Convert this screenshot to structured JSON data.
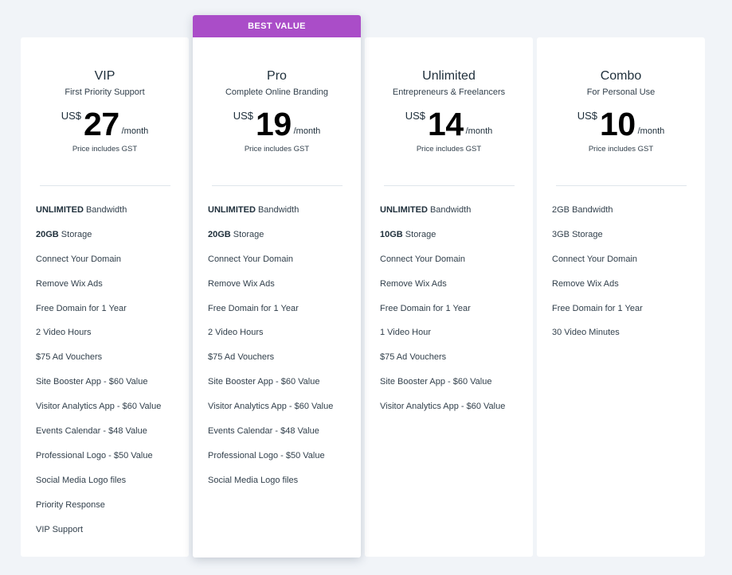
{
  "plans": [
    {
      "name": "VIP",
      "tagline": "First Priority Support",
      "currency": "US$",
      "price": "27",
      "period": "/month",
      "gst_note": "Price includes GST",
      "features": [
        {
          "bold": "UNLIMITED",
          "text": " Bandwidth"
        },
        {
          "bold": "20GB",
          "text": " Storage"
        },
        {
          "bold": "",
          "text": "Connect Your Domain"
        },
        {
          "bold": "",
          "text": "Remove Wix Ads"
        },
        {
          "bold": "",
          "text": "Free Domain for 1 Year"
        },
        {
          "bold": "",
          "text": "2 Video Hours"
        },
        {
          "bold": "",
          "text": "$75 Ad Vouchers"
        },
        {
          "bold": "",
          "text": "Site Booster App - $60 Value"
        },
        {
          "bold": "",
          "text": "Visitor Analytics App - $60 Value"
        },
        {
          "bold": "",
          "text": "Events Calendar - $48 Value"
        },
        {
          "bold": "",
          "text": "Professional Logo - $50 Value"
        },
        {
          "bold": "",
          "text": "Social Media Logo files"
        },
        {
          "bold": "",
          "text": "Priority Response"
        },
        {
          "bold": "",
          "text": "VIP Support"
        }
      ]
    },
    {
      "ribbon": "BEST VALUE",
      "name": "Pro",
      "tagline": "Complete Online Branding",
      "currency": "US$",
      "price": "19",
      "period": "/month",
      "gst_note": "Price includes GST",
      "features": [
        {
          "bold": "UNLIMITED",
          "text": " Bandwidth"
        },
        {
          "bold": "20GB",
          "text": " Storage"
        },
        {
          "bold": "",
          "text": "Connect Your Domain"
        },
        {
          "bold": "",
          "text": "Remove Wix Ads"
        },
        {
          "bold": "",
          "text": "Free Domain for 1 Year"
        },
        {
          "bold": "",
          "text": "2 Video Hours"
        },
        {
          "bold": "",
          "text": "$75 Ad Vouchers"
        },
        {
          "bold": "",
          "text": "Site Booster App - $60 Value"
        },
        {
          "bold": "",
          "text": "Visitor Analytics App - $60 Value"
        },
        {
          "bold": "",
          "text": "Events Calendar - $48 Value"
        },
        {
          "bold": "",
          "text": "Professional Logo - $50 Value"
        },
        {
          "bold": "",
          "text": "Social Media Logo files"
        }
      ]
    },
    {
      "name": "Unlimited",
      "tagline": "Entrepreneurs & Freelancers",
      "currency": "US$",
      "price": "14",
      "period": "/month",
      "gst_note": "Price includes GST",
      "features": [
        {
          "bold": "UNLIMITED",
          "text": " Bandwidth"
        },
        {
          "bold": "10GB",
          "text": " Storage"
        },
        {
          "bold": "",
          "text": "Connect Your Domain"
        },
        {
          "bold": "",
          "text": "Remove Wix Ads"
        },
        {
          "bold": "",
          "text": "Free Domain for 1 Year"
        },
        {
          "bold": "",
          "text": "1 Video Hour"
        },
        {
          "bold": "",
          "text": "$75 Ad Vouchers"
        },
        {
          "bold": "",
          "text": "Site Booster App - $60 Value"
        },
        {
          "bold": "",
          "text": "Visitor Analytics App - $60 Value"
        }
      ]
    },
    {
      "name": "Combo",
      "tagline": "For Personal Use",
      "currency": "US$",
      "price": "10",
      "period": "/month",
      "gst_note": "Price includes GST",
      "features": [
        {
          "bold": "",
          "text": "2GB Bandwidth"
        },
        {
          "bold": "",
          "text": "3GB Storage"
        },
        {
          "bold": "",
          "text": "Connect Your Domain"
        },
        {
          "bold": "",
          "text": "Remove Wix Ads"
        },
        {
          "bold": "",
          "text": "Free Domain for 1 Year"
        },
        {
          "bold": "",
          "text": "30 Video Minutes"
        }
      ]
    }
  ],
  "colors": {
    "page_background": "#f1f4f8",
    "card_background": "#ffffff",
    "ribbon": "#aa4dc8",
    "text": "#20303c"
  }
}
